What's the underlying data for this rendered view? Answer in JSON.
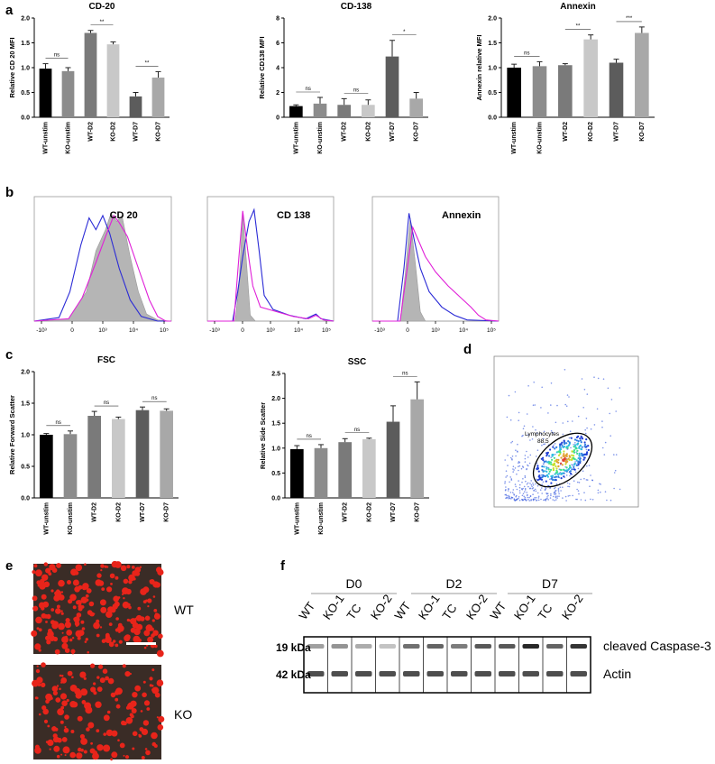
{
  "panel_labels": {
    "a": "a",
    "b": "b",
    "c": "c",
    "d": "d",
    "e": "e",
    "f": "f"
  },
  "chart_data": [
    {
      "type": "bar",
      "title": "CD-20",
      "ylabel": "Relative CD 20 MFI",
      "ylim": [
        0,
        2.0
      ],
      "yticks": [
        "0.0",
        "0.5",
        "1.0",
        "1.5",
        "2.0"
      ],
      "categories": [
        "WT-unstim",
        "KO-unstim",
        "WT-D2",
        "KO-D2",
        "WT-D7",
        "KO-D7"
      ],
      "values": [
        0.98,
        0.93,
        1.7,
        1.47,
        0.42,
        0.8
      ],
      "errors": [
        0.1,
        0.07,
        0.05,
        0.05,
        0.08,
        0.12
      ],
      "colors": [
        "#000000",
        "#8c8c8c",
        "#7a7a7a",
        "#c8c8c8",
        "#5c5c5c",
        "#a8a8a8"
      ],
      "sig": [
        {
          "a": 0,
          "b": 1,
          "label": "ns"
        },
        {
          "a": 2,
          "b": 3,
          "label": "**"
        },
        {
          "a": 4,
          "b": 5,
          "label": "**"
        }
      ]
    },
    {
      "type": "bar",
      "title": "CD-138",
      "ylabel": "Relative CD138 MFI",
      "ylim": [
        0,
        8
      ],
      "yticks": [
        "0",
        "2",
        "4",
        "6",
        "8"
      ],
      "categories": [
        "WT-unstim",
        "KO-unstim",
        "WT-D2",
        "KO-D2",
        "WT-D7",
        "KO-D7"
      ],
      "values": [
        0.9,
        1.1,
        1.0,
        1.0,
        4.9,
        1.5
      ],
      "errors": [
        0.1,
        0.5,
        0.5,
        0.4,
        1.3,
        0.5
      ],
      "colors": [
        "#000000",
        "#8c8c8c",
        "#7a7a7a",
        "#c8c8c8",
        "#5c5c5c",
        "#a8a8a8"
      ],
      "sig": [
        {
          "a": 0,
          "b": 1,
          "label": "ns"
        },
        {
          "a": 2,
          "b": 3,
          "label": "ns"
        },
        {
          "a": 4,
          "b": 5,
          "label": "*"
        }
      ]
    },
    {
      "type": "bar",
      "title": "Annexin",
      "ylabel": "Annexin relative MFI",
      "ylim": [
        0,
        2.0
      ],
      "yticks": [
        "0.0",
        "0.5",
        "1.0",
        "1.5",
        "2.0"
      ],
      "categories": [
        "WT-unstim",
        "KO-unstim",
        "WT-D2",
        "KO-D2",
        "WT-D7",
        "KO-D7"
      ],
      "values": [
        1.0,
        1.03,
        1.05,
        1.57,
        1.1,
        1.7
      ],
      "errors": [
        0.07,
        0.09,
        0.03,
        0.09,
        0.07,
        0.12
      ],
      "colors": [
        "#000000",
        "#8c8c8c",
        "#7a7a7a",
        "#c8c8c8",
        "#5c5c5c",
        "#a8a8a8"
      ],
      "sig": [
        {
          "a": 0,
          "b": 1,
          "label": "ns"
        },
        {
          "a": 2,
          "b": 3,
          "label": "**"
        },
        {
          "a": 4,
          "b": 5,
          "label": "***"
        }
      ]
    },
    {
      "type": "bar",
      "title": "FSC",
      "ylabel": "Relative Forward Scatter",
      "ylim": [
        0,
        2.0
      ],
      "yticks": [
        "0.0",
        "0.5",
        "1.0",
        "1.5",
        "2.0"
      ],
      "categories": [
        "WT-unstim",
        "KO-unstim",
        "WT-D2",
        "KO-D2",
        "WT-D7",
        "KO-D7"
      ],
      "values": [
        1.0,
        1.01,
        1.3,
        1.25,
        1.39,
        1.38
      ],
      "errors": [
        0.02,
        0.05,
        0.07,
        0.03,
        0.05,
        0.03
      ],
      "colors": [
        "#000000",
        "#8c8c8c",
        "#7a7a7a",
        "#c8c8c8",
        "#5c5c5c",
        "#a8a8a8"
      ],
      "sig": [
        {
          "a": 0,
          "b": 1,
          "label": "ns"
        },
        {
          "a": 2,
          "b": 3,
          "label": "ns"
        },
        {
          "a": 4,
          "b": 5,
          "label": "ns"
        }
      ]
    },
    {
      "type": "bar",
      "title": "SSC",
      "ylabel": "Relative Side Scatter",
      "ylim": [
        0,
        2.5
      ],
      "yticks": [
        "0.0",
        "0.5",
        "1.0",
        "1.5",
        "2.0",
        "2.5"
      ],
      "categories": [
        "WT-unstim",
        "KO-unstim",
        "WT-D2",
        "KO-D2",
        "WT-D7",
        "KO-D7"
      ],
      "values": [
        0.98,
        1.0,
        1.12,
        1.18,
        1.53,
        1.98
      ],
      "errors": [
        0.07,
        0.07,
        0.07,
        0.02,
        0.32,
        0.35
      ],
      "colors": [
        "#000000",
        "#8c8c8c",
        "#7a7a7a",
        "#c8c8c8",
        "#5c5c5c",
        "#a8a8a8"
      ],
      "sig": [
        {
          "a": 0,
          "b": 1,
          "label": "ns"
        },
        {
          "a": 2,
          "b": 3,
          "label": "ns"
        },
        {
          "a": 4,
          "b": 5,
          "label": "ns"
        }
      ]
    }
  ],
  "histograms": {
    "xticks": [
      "-10³",
      "0",
      "10³",
      "10⁴",
      "10⁵"
    ],
    "colors": {
      "grey": "#b5b5b5",
      "blue": "#2b2bd6",
      "magenta": "#e020d8"
    },
    "panels": [
      {
        "label": "CD 20"
      },
      {
        "label": "CD 138"
      },
      {
        "label": "Annexin"
      }
    ]
  },
  "gate": {
    "label": "Lymphocytes",
    "value": "88.5"
  },
  "microscopy": {
    "wt_label": "WT",
    "ko_label": "KO",
    "colors": {
      "cells": "#e8241a",
      "background": "#3a2c26"
    }
  },
  "western": {
    "groups": [
      "D0",
      "D2",
      "D7"
    ],
    "lanes": [
      "WT",
      "KO-1",
      "TC",
      "KO-2",
      "WT",
      "KO-1",
      "TC",
      "KO-2",
      "WT",
      "KO-1",
      "TC",
      "KO-2"
    ],
    "rows": [
      {
        "kda": "19 kDa",
        "name": "cleaved Caspase-3"
      },
      {
        "kda": "42 kDa",
        "name": "Actin"
      }
    ]
  }
}
